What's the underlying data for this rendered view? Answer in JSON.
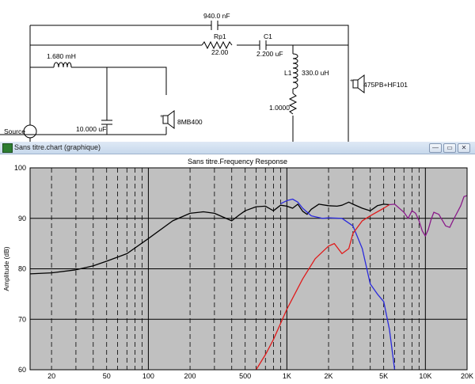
{
  "schematic": {
    "components": {
      "c_top": "940.0 nF",
      "rp1_name": "Rp1",
      "rp1_value": "22.00",
      "c1_name": "C1",
      "c1_value": "2.200 uF",
      "l_series": "1.680 mH",
      "l1_name": "L1",
      "l1_value": "330.0 uH",
      "r_val": "1.0000",
      "c_shunt": "10.000 uF",
      "woofer": "8MB400",
      "tweeter": "475PB+HF101",
      "source": "Source"
    }
  },
  "window": {
    "title": "Sans titre.chart (graphique)",
    "buttons": {
      "minimize": "—",
      "restore": "▭",
      "close": "✕"
    }
  },
  "chart_data": {
    "type": "line",
    "title": "Sans titre.Frequency Response",
    "ylabel": "Amplitude (dB)",
    "xlabel": "",
    "xscale": "log",
    "xlim": [
      14,
      20000
    ],
    "ylim": [
      60,
      100
    ],
    "x_tick_labels": [
      "20",
      "50",
      "100",
      "200",
      "500",
      "1K",
      "2K",
      "5K",
      "10K",
      "20K"
    ],
    "x_ticks": [
      20,
      50,
      100,
      200,
      500,
      1000,
      2000,
      5000,
      10000,
      20000
    ],
    "y_ticks": [
      60,
      70,
      80,
      90,
      100
    ],
    "grid": true,
    "series": [
      {
        "color": "#000000",
        "points": [
          [
            14,
            79
          ],
          [
            20,
            79.2
          ],
          [
            30,
            79.8
          ],
          [
            40,
            80.6
          ],
          [
            50,
            81.5
          ],
          [
            70,
            83
          ],
          [
            100,
            86
          ],
          [
            150,
            89.5
          ],
          [
            200,
            91
          ],
          [
            250,
            91.3
          ],
          [
            300,
            91
          ],
          [
            350,
            90.2
          ],
          [
            400,
            89.5
          ],
          [
            450,
            90.6
          ],
          [
            500,
            91.5
          ],
          [
            600,
            92.3
          ],
          [
            700,
            92.4
          ],
          [
            800,
            91.5
          ],
          [
            900,
            92.6
          ],
          [
            1000,
            92.4
          ],
          [
            1100,
            92
          ],
          [
            1200,
            92.8
          ],
          [
            1300,
            91.4
          ],
          [
            1400,
            90.8
          ],
          [
            1500,
            91.8
          ],
          [
            1700,
            92.8
          ],
          [
            2000,
            92.5
          ],
          [
            2300,
            92.4
          ],
          [
            2500,
            92.6
          ],
          [
            2800,
            93.2
          ],
          [
            3000,
            92.8
          ],
          [
            3500,
            92
          ],
          [
            4000,
            91.5
          ],
          [
            4500,
            92.5
          ],
          [
            5000,
            92.8
          ],
          [
            5500,
            92.7
          ]
        ]
      },
      {
        "color": "#2a2adc",
        "points": [
          [
            900,
            92.9
          ],
          [
            1000,
            93.5
          ],
          [
            1100,
            93.8
          ],
          [
            1200,
            93.2
          ],
          [
            1300,
            92
          ],
          [
            1500,
            90.5
          ],
          [
            1800,
            90
          ],
          [
            2000,
            90.1
          ],
          [
            2500,
            90
          ],
          [
            3000,
            88.5
          ],
          [
            3500,
            84
          ],
          [
            4000,
            77
          ],
          [
            4500,
            75
          ],
          [
            5000,
            73.5
          ],
          [
            5500,
            68
          ],
          [
            6000,
            60
          ]
        ]
      },
      {
        "color": "#e01a1a",
        "points": [
          [
            600,
            60
          ],
          [
            700,
            63
          ],
          [
            800,
            66
          ],
          [
            1000,
            72
          ],
          [
            1300,
            78
          ],
          [
            1600,
            82
          ],
          [
            2000,
            84.5
          ],
          [
            2200,
            85
          ],
          [
            2500,
            83
          ],
          [
            2800,
            84
          ],
          [
            3000,
            87
          ],
          [
            3500,
            89.5
          ],
          [
            4000,
            90.5
          ],
          [
            5000,
            92
          ],
          [
            5500,
            92.7
          ]
        ]
      },
      {
        "color": "#8a1a8a",
        "points": [
          [
            5500,
            92.7
          ],
          [
            6000,
            92.8
          ],
          [
            7000,
            91.2
          ],
          [
            7500,
            90
          ],
          [
            8000,
            91.5
          ],
          [
            8500,
            91
          ],
          [
            9000,
            89.5
          ],
          [
            9500,
            87.5
          ],
          [
            10000,
            86.5
          ],
          [
            10500,
            87.8
          ],
          [
            11000,
            89.8
          ],
          [
            11500,
            91.2
          ],
          [
            12500,
            90.8
          ],
          [
            14000,
            88.5
          ],
          [
            15000,
            88.2
          ],
          [
            16000,
            89.8
          ],
          [
            18000,
            92.5
          ],
          [
            19000,
            94.3
          ],
          [
            20000,
            94.5
          ],
          [
            20500,
            93.2
          ]
        ]
      }
    ]
  }
}
